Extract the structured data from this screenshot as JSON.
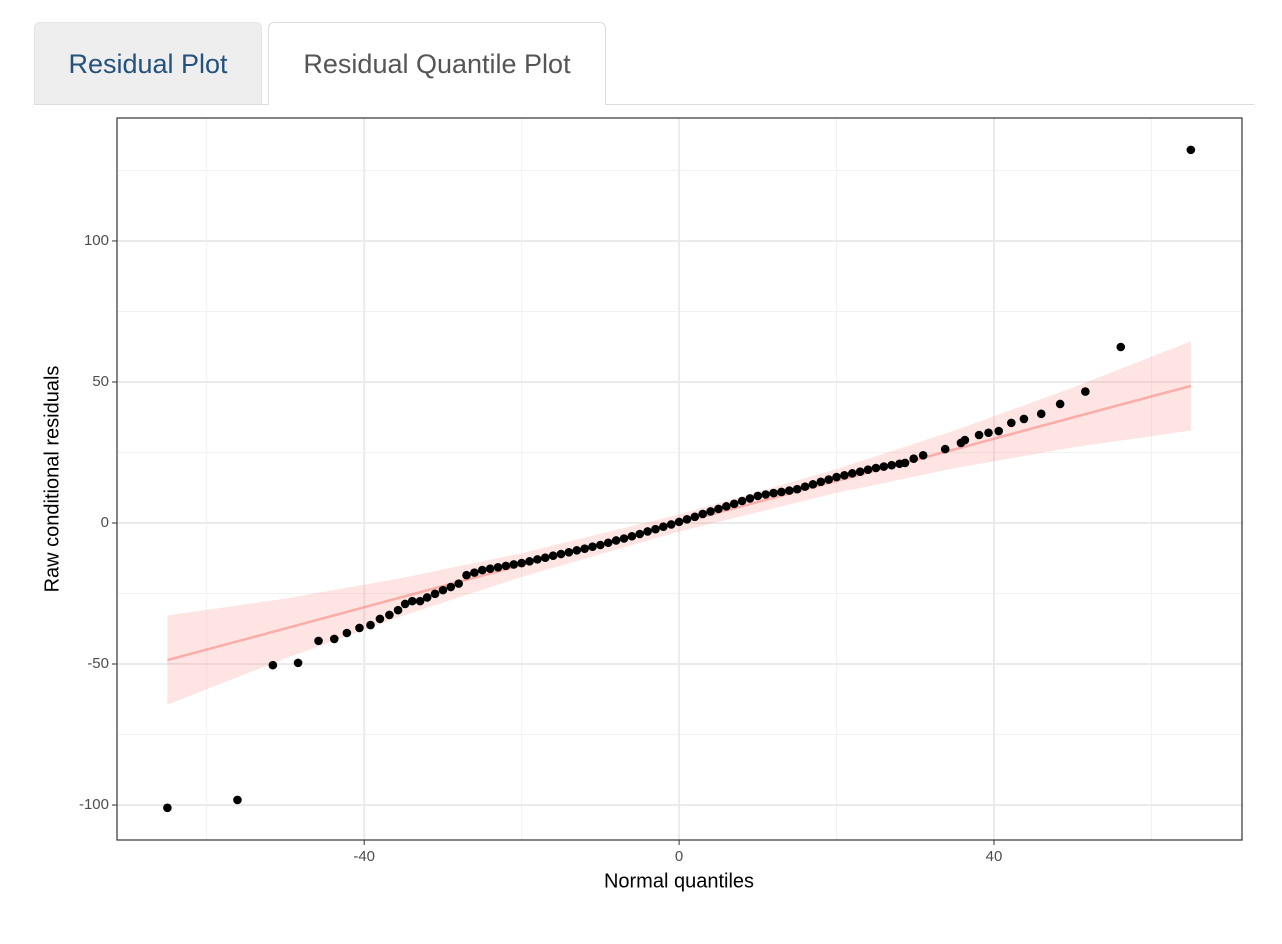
{
  "tabs": [
    "Residual Plot",
    "Residual Quantile Plot"
  ],
  "chart_data": {
    "type": "scatter",
    "xlabel": "Normal quantiles",
    "ylabel": "Raw conditional residuals",
    "xlim": [
      -71.4,
      71.5
    ],
    "ylim": [
      -112.4,
      143.6
    ],
    "xticks": [
      -40,
      0,
      40
    ],
    "yticks": [
      -100,
      -50,
      0,
      50,
      100
    ],
    "xminor": [
      -60,
      -20,
      20,
      60
    ],
    "yminor": [
      -75,
      -25,
      25,
      75,
      125
    ],
    "grid": true,
    "color": "#000000",
    "x": [
      -65.0,
      -56.1,
      -51.6,
      -48.4,
      -45.8,
      -43.8,
      -42.2,
      -40.6,
      -39.2,
      -38.0,
      -36.8,
      -35.7,
      -34.8,
      -33.9,
      -32.9,
      -32,
      -31,
      -30,
      -29,
      -28,
      -27,
      -26,
      -25,
      -24,
      -23,
      -22,
      -21,
      -20,
      -19,
      -18,
      -17,
      -16,
      -15,
      -14,
      -13,
      -12,
      -11,
      -10,
      -9,
      -8,
      -7,
      -6,
      -5,
      -4,
      -3,
      -2,
      -1,
      0,
      1,
      2,
      3,
      4,
      5,
      6,
      7,
      8,
      9,
      10,
      11,
      12,
      13,
      14,
      15,
      16,
      17,
      18,
      19,
      20,
      21,
      22,
      23,
      24,
      25,
      26,
      27,
      28,
      28.7,
      29.8,
      31.0,
      33.8,
      35.8,
      36.3,
      38.1,
      39.3,
      40.6,
      42.2,
      43.8,
      46.0,
      48.4,
      51.6,
      56.1,
      65.0
    ],
    "values": [
      -101,
      -98.2,
      -50.4,
      -49.6,
      -41.8,
      -41.1,
      -39.0,
      -37.2,
      -36.2,
      -34.0,
      -32.6,
      -30.9,
      -28.7,
      -27.7,
      -27.7,
      -26.4,
      -25.1,
      -23.8,
      -22.7,
      -21.5,
      -18.5,
      -17.6,
      -16.7,
      -16.2,
      -15.7,
      -15.2,
      -14.7,
      -14.2,
      -13.6,
      -12.9,
      -12.3,
      -11.6,
      -11.0,
      -10.4,
      -9.7,
      -9.1,
      -8.4,
      -7.8,
      -7.0,
      -6.2,
      -5.5,
      -4.7,
      -3.9,
      -3.0,
      -2.2,
      -1.3,
      -0.5,
      0.4,
      1.3,
      2.2,
      3.2,
      4.1,
      5.0,
      5.9,
      6.8,
      7.8,
      8.7,
      9.6,
      10.1,
      10.6,
      11.0,
      11.5,
      12.0,
      12.9,
      13.7,
      14.6,
      15.4,
      16.3,
      16.9,
      17.6,
      18.2,
      18.9,
      19.5,
      20.0,
      20.5,
      21.0,
      21.3,
      22.8,
      24.0,
      26.2,
      28.4,
      29.4,
      31.2,
      32.0,
      32.6,
      35.5,
      36.9,
      38.7,
      42.2,
      46.6,
      62.4,
      132.3
    ],
    "reference_line": {
      "color": "#f8766d",
      "x": [
        -65,
        -50,
        -35,
        -20,
        0,
        20,
        35,
        50,
        65
      ],
      "values": [
        -48.6,
        -37.4,
        -26.1,
        -14.9,
        0,
        14.9,
        26.1,
        37.4,
        48.6
      ],
      "lower": [
        -64.4,
        -48.0,
        -32.8,
        -19.1,
        -3,
        10.7,
        19.4,
        26.8,
        32.8
      ],
      "upper": [
        -32.8,
        -26.8,
        -19.4,
        -10.7,
        3,
        19.1,
        32.8,
        48.0,
        64.4
      ]
    }
  }
}
